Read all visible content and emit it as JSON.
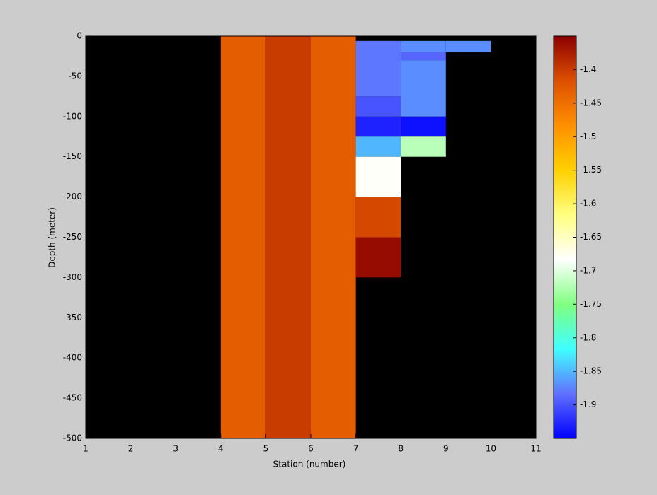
{
  "chart_data": {
    "type": "heatmap",
    "xlabel": "Station (number)",
    "ylabel": "Depth (meter)",
    "xlim": [
      1,
      11
    ],
    "xticks": [
      1,
      2,
      3,
      4,
      5,
      6,
      7,
      8,
      9,
      10,
      11
    ],
    "ylim": [
      -500,
      0
    ],
    "yticks": [
      -500,
      -450,
      -400,
      -350,
      -300,
      -250,
      -200,
      -150,
      -100,
      -50,
      0
    ],
    "clim": [
      -1.95,
      -1.35
    ],
    "cticks": [
      -1.9,
      -1.85,
      -1.8,
      -1.75,
      -1.7,
      -1.65,
      -1.6,
      -1.55,
      -1.5,
      -1.45,
      -1.4
    ],
    "colormap": [
      "#0000ff",
      "#6070ff",
      "#40ffff",
      "#80ff80",
      "#ffffff",
      "#ffff80",
      "#ffd000",
      "#ff9000",
      "#dd5000",
      "#8b0000"
    ],
    "background": "#000000",
    "cells": [
      {
        "x": [
          4,
          5
        ],
        "y": [
          -500,
          0
        ],
        "value": -1.43
      },
      {
        "x": [
          5,
          6
        ],
        "y": [
          -500,
          0
        ],
        "value": -1.4
      },
      {
        "x": [
          6,
          7
        ],
        "y": [
          -500,
          0
        ],
        "value": -1.43
      },
      {
        "x": [
          7,
          8
        ],
        "y": [
          -75,
          -6
        ],
        "value": -1.88
      },
      {
        "x": [
          7,
          8
        ],
        "y": [
          -100,
          -75
        ],
        "value": -1.9
      },
      {
        "x": [
          7,
          8
        ],
        "y": [
          -125,
          -100
        ],
        "value": -1.93
      },
      {
        "x": [
          7,
          8
        ],
        "y": [
          -150,
          -125
        ],
        "value": -1.85
      },
      {
        "x": [
          7,
          8
        ],
        "y": [
          -200,
          -150
        ],
        "value": -1.68
      },
      {
        "x": [
          7,
          8
        ],
        "y": [
          -250,
          -200
        ],
        "value": -1.41
      },
      {
        "x": [
          7,
          8
        ],
        "y": [
          -300,
          -250
        ],
        "value": -1.36
      },
      {
        "x": [
          8,
          9
        ],
        "y": [
          -20,
          -6
        ],
        "value": -1.87
      },
      {
        "x": [
          8,
          9
        ],
        "y": [
          -30,
          -20
        ],
        "value": -1.89
      },
      {
        "x": [
          8,
          9
        ],
        "y": [
          -100,
          -30
        ],
        "value": -1.87
      },
      {
        "x": [
          8,
          9
        ],
        "y": [
          -125,
          -100
        ],
        "value": -1.94
      },
      {
        "x": [
          8,
          9
        ],
        "y": [
          -150,
          -125
        ],
        "value": -1.72
      },
      {
        "x": [
          9,
          10
        ],
        "y": [
          -20,
          -6
        ],
        "value": -1.87
      }
    ]
  }
}
